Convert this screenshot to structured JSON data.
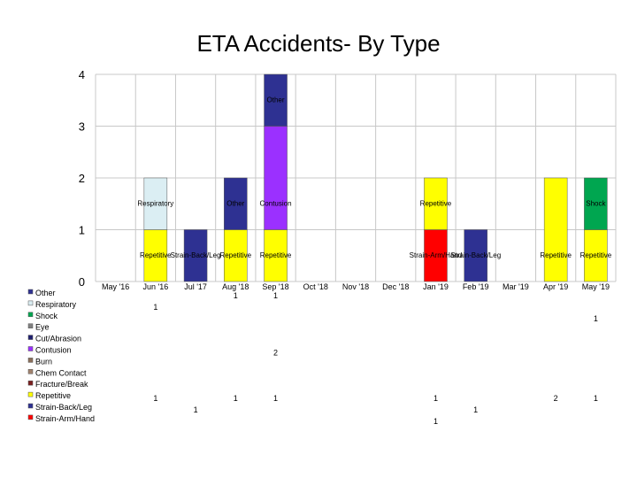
{
  "chart_data": {
    "type": "bar",
    "stacked": true,
    "title": "ETA Accidents- By Type",
    "categories": [
      "May '16",
      "Jun '16",
      "Jul '17",
      "Aug '18",
      "Sep '18",
      "Oct '18",
      "Nov '18",
      "Dec '18",
      "Jan '19",
      "Feb '19",
      "Mar '19",
      "Apr '19",
      "May '19"
    ],
    "ylim": [
      0,
      4
    ],
    "yticks": [
      "0",
      "1",
      "2",
      "3",
      "4"
    ],
    "grid": true,
    "legend_position": "bottom-left (as data table rows)",
    "series": [
      {
        "name": "Other",
        "color": "#2e3192",
        "values": [
          null,
          null,
          null,
          1,
          1,
          null,
          null,
          null,
          null,
          null,
          null,
          null,
          null
        ]
      },
      {
        "name": "Respiratory",
        "color": "#dbeef3",
        "values": [
          null,
          1,
          null,
          null,
          null,
          null,
          null,
          null,
          null,
          null,
          null,
          null,
          null
        ]
      },
      {
        "name": "Shock",
        "color": "#00a650",
        "values": [
          null,
          null,
          null,
          null,
          null,
          null,
          null,
          null,
          null,
          null,
          null,
          null,
          1
        ]
      },
      {
        "name": "Eye",
        "color": "#808080",
        "values": [
          null,
          null,
          null,
          null,
          null,
          null,
          null,
          null,
          null,
          null,
          null,
          null,
          null
        ]
      },
      {
        "name": "Cut/Abrasion",
        "color": "#1f1f6e",
        "values": [
          null,
          null,
          null,
          null,
          null,
          null,
          null,
          null,
          null,
          null,
          null,
          null,
          null
        ]
      },
      {
        "name": "Contusion",
        "color": "#9b30ff",
        "values": [
          null,
          null,
          null,
          null,
          2,
          null,
          null,
          null,
          null,
          null,
          null,
          null,
          null
        ]
      },
      {
        "name": "Burn",
        "color": "#8b6f5a",
        "values": [
          null,
          null,
          null,
          null,
          null,
          null,
          null,
          null,
          null,
          null,
          null,
          null,
          null
        ]
      },
      {
        "name": "Chem Contact",
        "color": "#a0826d",
        "values": [
          null,
          null,
          null,
          null,
          null,
          null,
          null,
          null,
          null,
          null,
          null,
          null,
          null
        ]
      },
      {
        "name": "Fracture/Break",
        "color": "#7a1f1f",
        "values": [
          null,
          null,
          null,
          null,
          null,
          null,
          null,
          null,
          null,
          null,
          null,
          null,
          null
        ]
      },
      {
        "name": "Repetitive",
        "color": "#ffff00",
        "values": [
          null,
          1,
          null,
          1,
          1,
          null,
          null,
          null,
          1,
          null,
          null,
          2,
          1
        ]
      },
      {
        "name": "Strain-Back/Leg",
        "color": "#2e3192",
        "values": [
          null,
          null,
          1,
          null,
          null,
          null,
          null,
          null,
          null,
          1,
          null,
          null,
          null
        ]
      },
      {
        "name": "Strain-Arm/Hand",
        "color": "#ff0000",
        "values": [
          null,
          null,
          null,
          null,
          null,
          null,
          null,
          null,
          1,
          null,
          null,
          null,
          null
        ]
      }
    ],
    "segment_labels": [
      {
        "category": "Jun '16",
        "series": "Repetitive",
        "text": "Repetitive"
      },
      {
        "category": "Jun '16",
        "series": "Respiratory",
        "text": "Respiratory"
      },
      {
        "category": "Jul '17",
        "series": "Strain-Back/Leg",
        "text": "Strain-Back/Leg"
      },
      {
        "category": "Aug '18",
        "series": "Repetitive",
        "text": "Repetitive"
      },
      {
        "category": "Aug '18",
        "series": "Other",
        "text": "Other"
      },
      {
        "category": "Sep '18",
        "series": "Repetitive",
        "text": "Repetitive"
      },
      {
        "category": "Sep '18",
        "series": "Contusion",
        "text": "Contusion"
      },
      {
        "category": "Sep '18",
        "series": "Other",
        "text": "Other"
      },
      {
        "category": "Jan '19",
        "series": "Strain-Arm/Hand",
        "text": "Strain-Arm/Hand"
      },
      {
        "category": "Jan '19",
        "series": "Repetitive",
        "text": "Repetitive"
      },
      {
        "category": "Feb '19",
        "series": "Strain-Back/Leg",
        "text": "Strain-Back/Leg"
      },
      {
        "category": "Apr '19",
        "series": "Repetitive",
        "text": "Repetitive"
      },
      {
        "category": "May '19",
        "series": "Repetitive",
        "text": "Repetitive"
      },
      {
        "category": "May '19",
        "series": "Shock",
        "text": "Shock"
      }
    ]
  }
}
